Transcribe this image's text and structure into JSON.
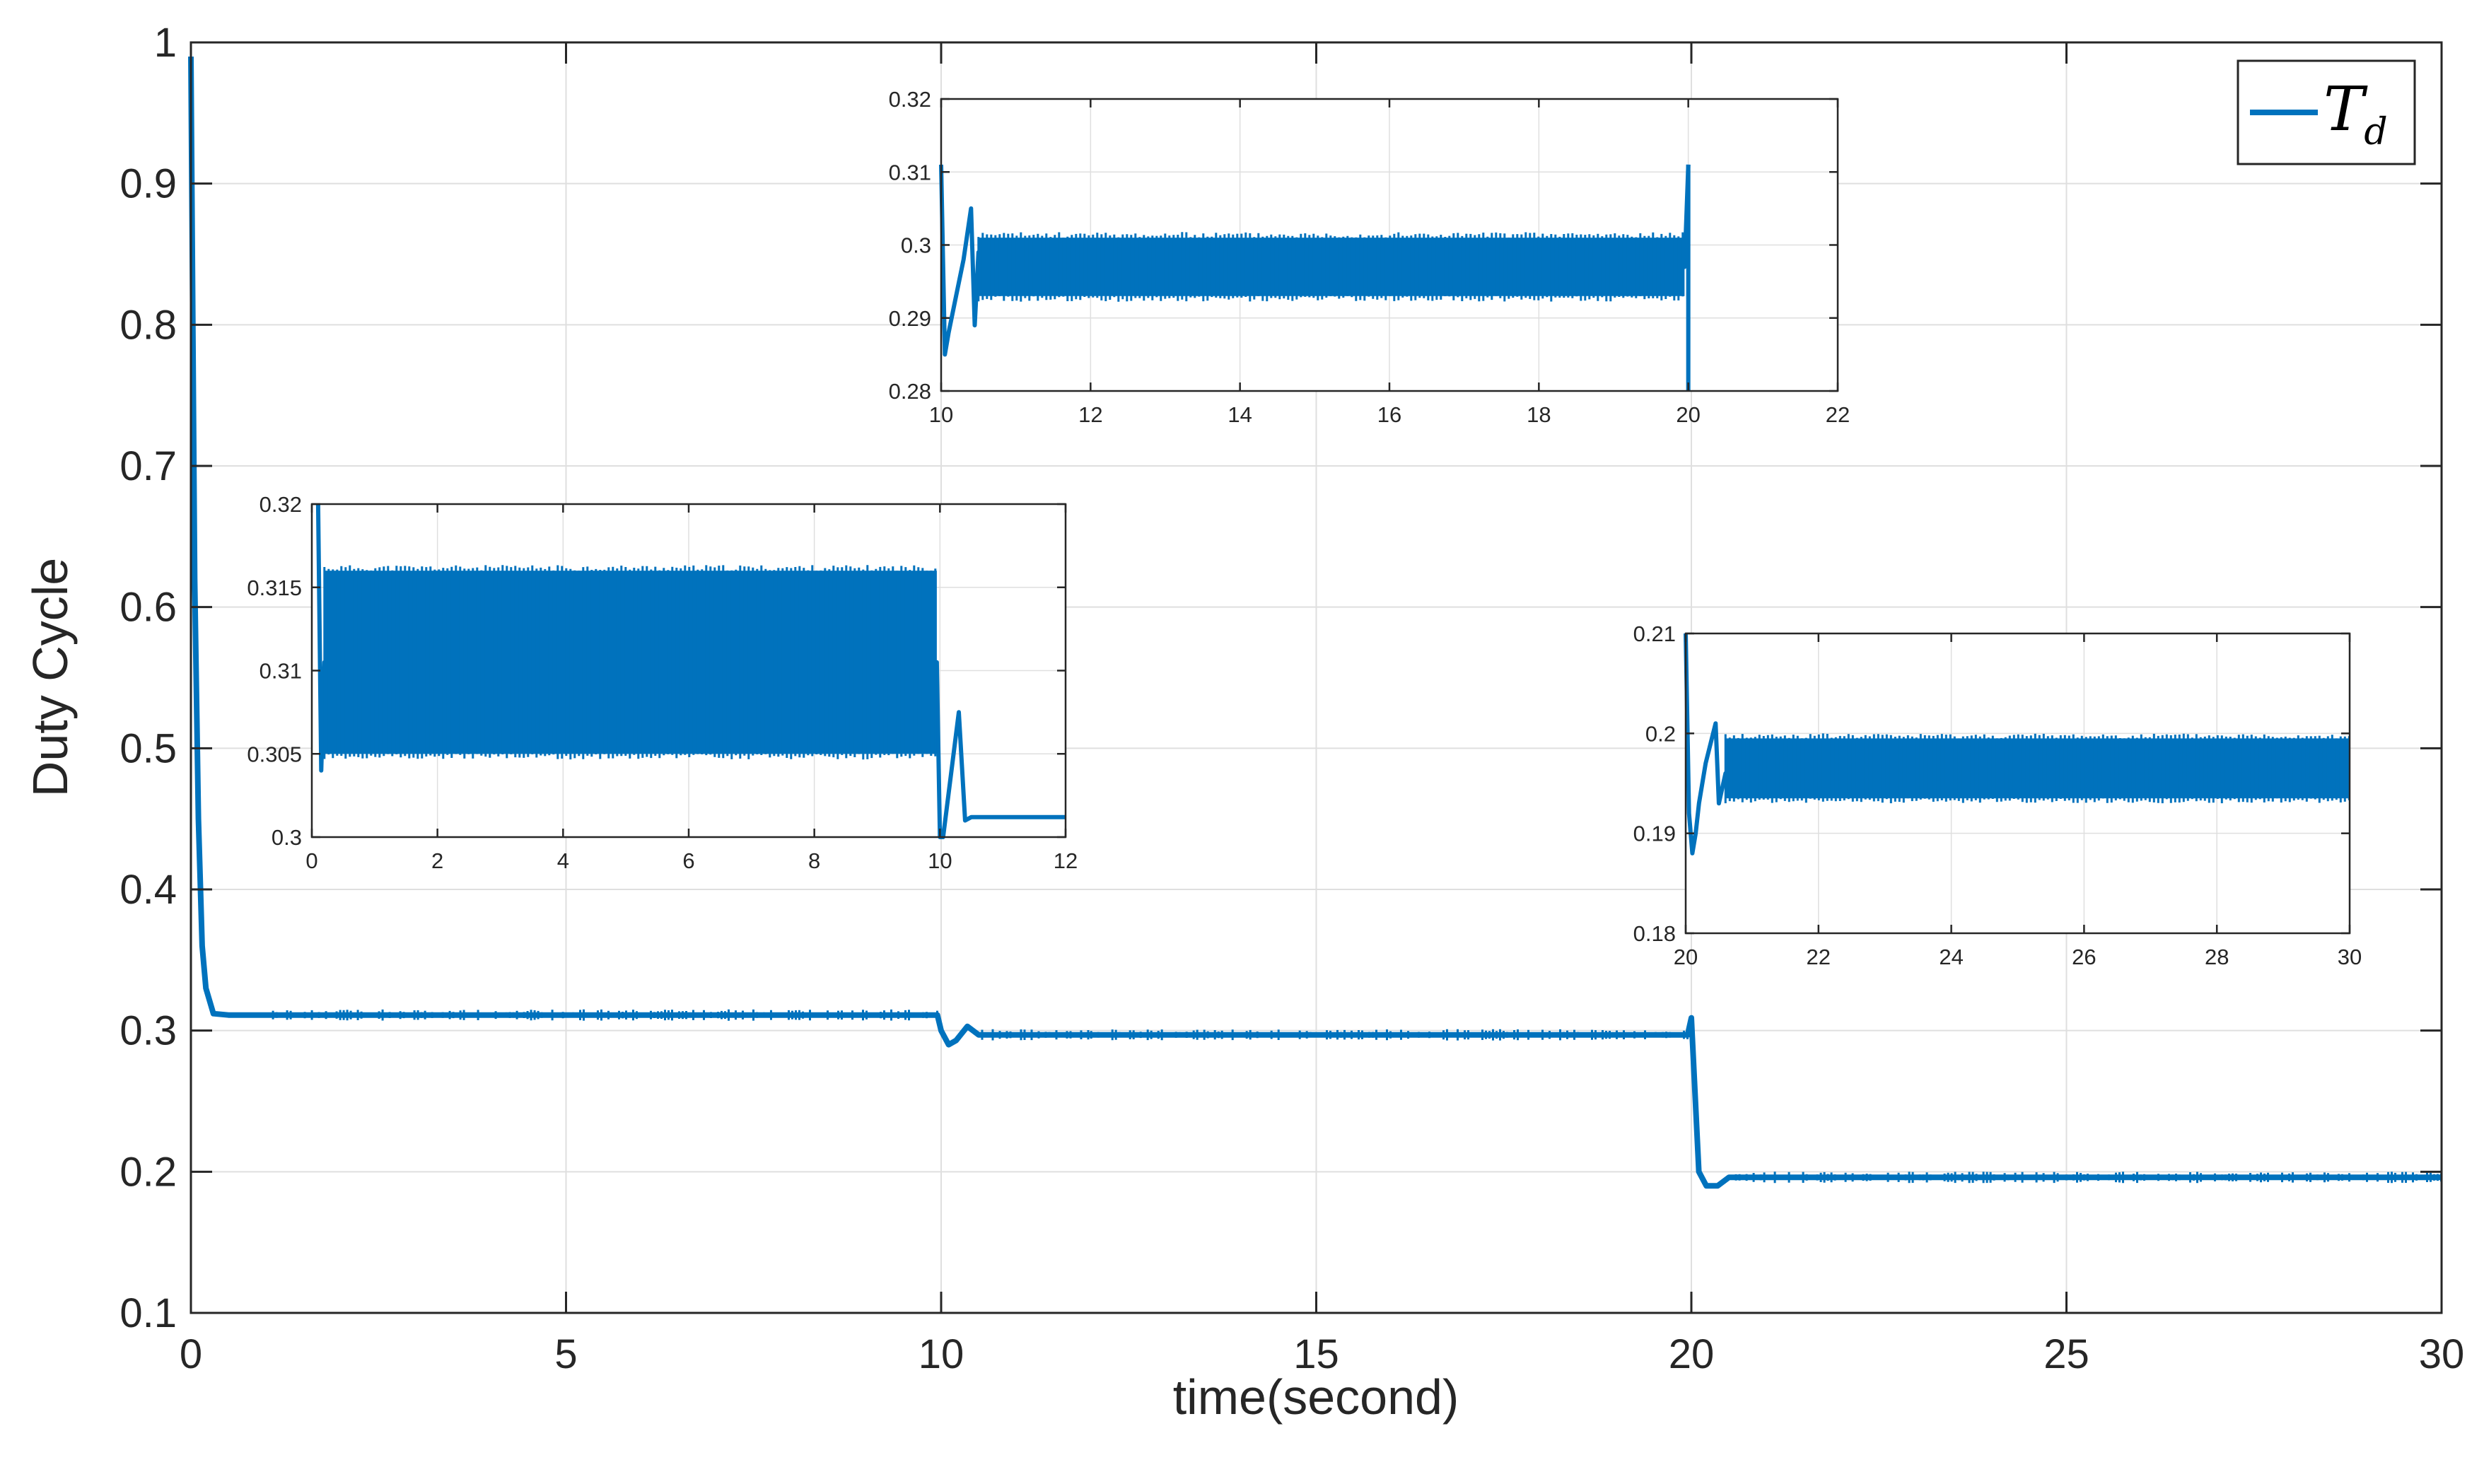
{
  "chart_data": [
    {
      "type": "line",
      "role": "main",
      "xlabel": "time(second)",
      "ylabel": "Duty Cycle",
      "xlim": [
        0,
        30
      ],
      "ylim": [
        0.1,
        1
      ],
      "xticks": [
        0,
        5,
        10,
        15,
        20,
        25,
        30
      ],
      "xtick_labels": [
        "0",
        "5",
        "10",
        "15",
        "20",
        "25",
        "30"
      ],
      "yticks": [
        0.1,
        0.2,
        0.3,
        0.4,
        0.5,
        0.6,
        0.7,
        0.8,
        0.9,
        1
      ],
      "ytick_labels": [
        "0.1",
        "0.2",
        "0.3",
        "0.4",
        "0.5",
        "0.6",
        "0.7",
        "0.8",
        "0.9",
        "1"
      ],
      "grid": true,
      "legend": {
        "position": "top-right",
        "label_main": "T",
        "label_sub": "d"
      },
      "series": [
        {
          "name": "Td",
          "color": "#0072BD",
          "x": [
            0,
            0.05,
            0.1,
            0.15,
            0.2,
            0.3,
            0.5,
            1,
            5,
            9.95,
            10.0,
            10.1,
            10.2,
            10.35,
            10.5,
            12,
            15,
            19.95,
            20.0,
            20.1,
            20.2,
            20.35,
            20.5,
            25,
            30
          ],
          "y": [
            0.99,
            0.62,
            0.45,
            0.36,
            0.33,
            0.312,
            0.311,
            0.311,
            0.311,
            0.311,
            0.3,
            0.29,
            0.293,
            0.303,
            0.297,
            0.297,
            0.297,
            0.297,
            0.309,
            0.2,
            0.19,
            0.19,
            0.196,
            0.196,
            0.196
          ],
          "noise_amplitude": 0.004
        }
      ]
    },
    {
      "type": "line",
      "role": "inset",
      "location": "left",
      "xlim": [
        0,
        12
      ],
      "ylim": [
        0.3,
        0.32
      ],
      "xticks": [
        0,
        2,
        4,
        6,
        8,
        10,
        12
      ],
      "xtick_labels": [
        "0",
        "2",
        "4",
        "6",
        "8",
        "10",
        "12"
      ],
      "yticks": [
        0.3,
        0.305,
        0.31,
        0.315,
        0.32
      ],
      "ytick_labels": [
        "0.3",
        "0.305",
        "0.31",
        "0.315",
        "0.32"
      ],
      "grid": true,
      "series": [
        {
          "color": "#0072BD",
          "x": [
            0.1,
            0.15,
            0.2,
            9.95,
            10.0,
            10.05,
            10.3,
            10.4,
            10.5,
            12
          ],
          "y": [
            0.32,
            0.304,
            0.3105,
            0.3105,
            0.3,
            0.3,
            0.3075,
            0.301,
            0.3012,
            0.3012
          ],
          "band_upper": 0.316,
          "band_lower": 0.305,
          "band_x": [
            0.2,
            9.95
          ]
        }
      ]
    },
    {
      "type": "line",
      "role": "inset",
      "location": "top-center",
      "xlim": [
        10,
        22
      ],
      "ylim": [
        0.28,
        0.32
      ],
      "xticks": [
        10,
        12,
        14,
        16,
        18,
        20,
        22
      ],
      "xtick_labels": [
        "10",
        "12",
        "14",
        "16",
        "18",
        "20",
        "22"
      ],
      "yticks": [
        0.28,
        0.29,
        0.3,
        0.31,
        0.32
      ],
      "ytick_labels": [
        "0.28",
        "0.29",
        "0.3",
        "0.31",
        "0.32"
      ],
      "grid": true,
      "series": [
        {
          "color": "#0072BD",
          "x": [
            10.0,
            10.05,
            10.1,
            10.2,
            10.3,
            10.4,
            10.45,
            10.5,
            10.6,
            19.95,
            20.0
          ],
          "y": [
            0.311,
            0.285,
            0.288,
            0.293,
            0.298,
            0.305,
            0.289,
            0.299,
            0.297,
            0.297,
            0.311
          ],
          "band_upper": 0.301,
          "band_lower": 0.293,
          "band_x": [
            10.5,
            19.95
          ],
          "drop_at_end": 0.28
        }
      ]
    },
    {
      "type": "line",
      "role": "inset",
      "location": "right",
      "xlim": [
        20,
        30
      ],
      "ylim": [
        0.18,
        0.21
      ],
      "xticks": [
        20,
        22,
        24,
        26,
        28,
        30
      ],
      "xtick_labels": [
        "20",
        "22",
        "24",
        "26",
        "28",
        "30"
      ],
      "yticks": [
        0.18,
        0.19,
        0.2,
        0.21
      ],
      "ytick_labels": [
        "0.18",
        "0.19",
        "0.2",
        "0.21"
      ],
      "grid": true,
      "series": [
        {
          "color": "#0072BD",
          "x": [
            20.0,
            20.05,
            20.1,
            20.15,
            20.2,
            20.3,
            20.45,
            20.5,
            20.6,
            30
          ],
          "y": [
            0.21,
            0.192,
            0.188,
            0.19,
            0.193,
            0.197,
            0.201,
            0.193,
            0.196,
            0.196
          ],
          "band_upper": 0.1995,
          "band_lower": 0.1935,
          "band_x": [
            20.6,
            30
          ]
        }
      ]
    }
  ]
}
